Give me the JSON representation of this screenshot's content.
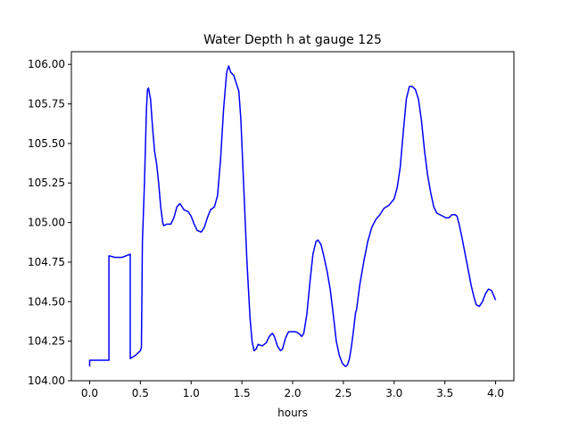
{
  "chart_data": {
    "type": "line",
    "title": "Water Depth h at gauge 125",
    "xlabel": "hours",
    "ylabel": "",
    "xlim": [
      -0.18,
      4.18
    ],
    "ylim": [
      104.0,
      106.08
    ],
    "xticks": [
      0.0,
      0.5,
      1.0,
      1.5,
      2.0,
      2.5,
      3.0,
      3.5,
      4.0
    ],
    "xtick_labels": [
      "0.0",
      "0.5",
      "1.0",
      "1.5",
      "2.0",
      "2.5",
      "3.0",
      "3.5",
      "4.0"
    ],
    "yticks": [
      104.0,
      104.25,
      104.5,
      104.75,
      105.0,
      105.25,
      105.5,
      105.75,
      106.0
    ],
    "ytick_labels": [
      "104.00",
      "104.25",
      "104.50",
      "104.75",
      "105.00",
      "105.25",
      "105.50",
      "105.75",
      "106.00"
    ],
    "grid": false,
    "series": [
      {
        "color": "#0000ff",
        "points": [
          [
            0.0,
            104.09
          ],
          [
            0.0,
            104.13
          ],
          [
            0.1,
            104.13
          ],
          [
            0.19,
            104.13
          ],
          [
            0.19,
            104.79
          ],
          [
            0.25,
            104.78
          ],
          [
            0.32,
            104.78
          ],
          [
            0.4,
            104.8
          ],
          [
            0.4,
            104.14
          ],
          [
            0.45,
            104.16
          ],
          [
            0.5,
            104.19
          ],
          [
            0.51,
            104.21
          ],
          [
            0.52,
            104.88
          ],
          [
            0.54,
            105.25
          ],
          [
            0.56,
            105.72
          ],
          [
            0.57,
            105.84
          ],
          [
            0.58,
            105.85
          ],
          [
            0.6,
            105.78
          ],
          [
            0.62,
            105.6
          ],
          [
            0.64,
            105.45
          ],
          [
            0.66,
            105.37
          ],
          [
            0.68,
            105.25
          ],
          [
            0.7,
            105.1
          ],
          [
            0.72,
            105.0
          ],
          [
            0.73,
            104.98
          ],
          [
            0.76,
            104.99
          ],
          [
            0.8,
            104.99
          ],
          [
            0.83,
            105.03
          ],
          [
            0.86,
            105.1
          ],
          [
            0.89,
            105.12
          ],
          [
            0.93,
            105.08
          ],
          [
            0.97,
            105.07
          ],
          [
            1.0,
            105.04
          ],
          [
            1.03,
            104.99
          ],
          [
            1.06,
            104.95
          ],
          [
            1.1,
            104.94
          ],
          [
            1.13,
            104.97
          ],
          [
            1.16,
            105.03
          ],
          [
            1.19,
            105.08
          ],
          [
            1.23,
            105.1
          ],
          [
            1.26,
            105.17
          ],
          [
            1.29,
            105.4
          ],
          [
            1.32,
            105.72
          ],
          [
            1.35,
            105.95
          ],
          [
            1.37,
            105.99
          ],
          [
            1.39,
            105.95
          ],
          [
            1.42,
            105.93
          ],
          [
            1.45,
            105.87
          ],
          [
            1.47,
            105.83
          ],
          [
            1.49,
            105.65
          ],
          [
            1.52,
            105.2
          ],
          [
            1.55,
            104.75
          ],
          [
            1.58,
            104.4
          ],
          [
            1.6,
            104.25
          ],
          [
            1.62,
            104.19
          ],
          [
            1.64,
            104.2
          ],
          [
            1.66,
            104.23
          ],
          [
            1.7,
            104.22
          ],
          [
            1.74,
            104.24
          ],
          [
            1.77,
            104.28
          ],
          [
            1.8,
            104.3
          ],
          [
            1.82,
            104.28
          ],
          [
            1.85,
            104.22
          ],
          [
            1.88,
            104.19
          ],
          [
            1.9,
            104.2
          ],
          [
            1.93,
            104.27
          ],
          [
            1.96,
            104.31
          ],
          [
            2.0,
            104.31
          ],
          [
            2.03,
            104.31
          ],
          [
            2.06,
            104.3
          ],
          [
            2.09,
            104.28
          ],
          [
            2.11,
            104.3
          ],
          [
            2.14,
            104.42
          ],
          [
            2.17,
            104.62
          ],
          [
            2.2,
            104.8
          ],
          [
            2.23,
            104.88
          ],
          [
            2.25,
            104.89
          ],
          [
            2.28,
            104.86
          ],
          [
            2.31,
            104.78
          ],
          [
            2.34,
            104.69
          ],
          [
            2.37,
            104.58
          ],
          [
            2.4,
            104.42
          ],
          [
            2.43,
            104.25
          ],
          [
            2.46,
            104.16
          ],
          [
            2.49,
            104.11
          ],
          [
            2.52,
            104.09
          ],
          [
            2.54,
            104.1
          ],
          [
            2.56,
            104.14
          ],
          [
            2.58,
            104.22
          ],
          [
            2.6,
            104.32
          ],
          [
            2.62,
            104.43
          ],
          [
            2.63,
            104.45
          ],
          [
            2.66,
            104.6
          ],
          [
            2.7,
            104.75
          ],
          [
            2.74,
            104.88
          ],
          [
            2.78,
            104.97
          ],
          [
            2.82,
            105.02
          ],
          [
            2.86,
            105.05
          ],
          [
            2.9,
            105.09
          ],
          [
            2.95,
            105.11
          ],
          [
            3.0,
            105.15
          ],
          [
            3.03,
            105.22
          ],
          [
            3.06,
            105.35
          ],
          [
            3.09,
            105.57
          ],
          [
            3.12,
            105.78
          ],
          [
            3.15,
            105.86
          ],
          [
            3.18,
            105.86
          ],
          [
            3.21,
            105.84
          ],
          [
            3.24,
            105.78
          ],
          [
            3.27,
            105.64
          ],
          [
            3.3,
            105.45
          ],
          [
            3.33,
            105.3
          ],
          [
            3.36,
            105.19
          ],
          [
            3.39,
            105.1
          ],
          [
            3.42,
            105.06
          ],
          [
            3.45,
            105.05
          ],
          [
            3.48,
            105.04
          ],
          [
            3.51,
            105.03
          ],
          [
            3.54,
            105.03
          ],
          [
            3.57,
            105.05
          ],
          [
            3.6,
            105.05
          ],
          [
            3.62,
            105.04
          ],
          [
            3.64,
            104.99
          ],
          [
            3.67,
            104.9
          ],
          [
            3.7,
            104.8
          ],
          [
            3.73,
            104.7
          ],
          [
            3.76,
            104.6
          ],
          [
            3.79,
            104.52
          ],
          [
            3.81,
            104.48
          ],
          [
            3.84,
            104.47
          ],
          [
            3.87,
            104.5
          ],
          [
            3.9,
            104.55
          ],
          [
            3.93,
            104.58
          ],
          [
            3.96,
            104.57
          ],
          [
            3.98,
            104.54
          ],
          [
            4.0,
            104.51
          ]
        ]
      }
    ]
  }
}
